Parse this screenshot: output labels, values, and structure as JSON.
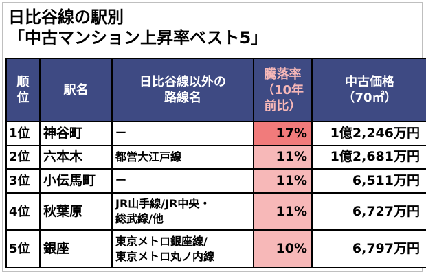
{
  "title": {
    "line1": "日比谷線の駅別",
    "line2": "「中古マンション上昇率ベスト5」"
  },
  "table": {
    "headers": {
      "rank": [
        "順",
        "位"
      ],
      "station": "駅名",
      "other_lines": [
        "日比谷線以外の",
        "路線名"
      ],
      "rate": [
        "騰落率",
        "（10年",
        "前比）"
      ],
      "price": [
        "中古価格",
        "（70㎡）"
      ]
    },
    "rows": [
      {
        "rank": "1位",
        "station": "神谷町",
        "other_lines": [
          "ー"
        ],
        "rate": "17%",
        "price": "1億2,246万円"
      },
      {
        "rank": "2位",
        "station": "六本木",
        "other_lines": [
          "都営大江戸線"
        ],
        "rate": "11%",
        "price": "1億2,681万円"
      },
      {
        "rank": "3位",
        "station": "小伝馬町",
        "other_lines": [
          "ー"
        ],
        "rate": "11%",
        "price": "6,511万円"
      },
      {
        "rank": "4位",
        "station": "秋葉原",
        "other_lines": [
          "JR山手線/JR中央・",
          "総武線/他"
        ],
        "rate": "11%",
        "price": "6,727万円"
      },
      {
        "rank": "5位",
        "station": "銀座",
        "other_lines": [
          "東京メトロ銀座線/",
          "東京メトロ丸ノ内線"
        ],
        "rate": "10%",
        "price": "6,797万円"
      }
    ]
  },
  "colors": {
    "header_bg": "#3e4a83",
    "header_text": "#ffffff",
    "rate_header_text": "#f7b8b8",
    "rate_top_bg": "#f17b7b",
    "rate_bg": "#f7b8b8"
  }
}
